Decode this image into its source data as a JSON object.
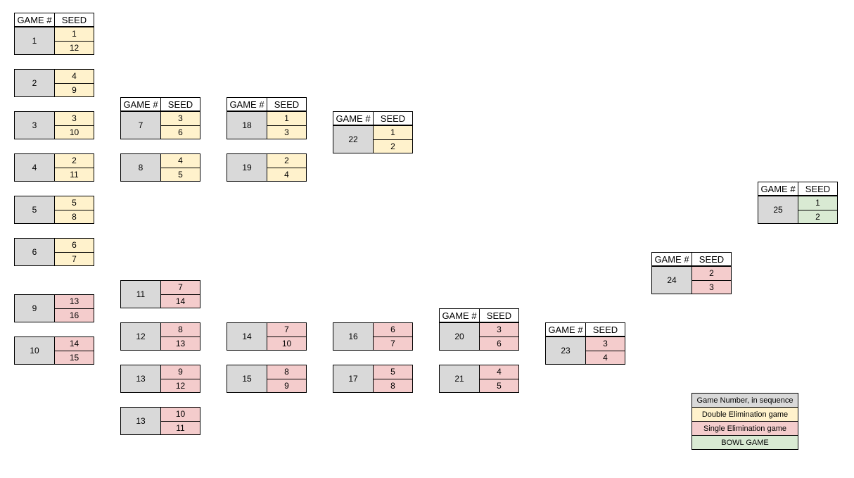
{
  "header": {
    "game_label": "GAME #",
    "seed_label": "SEED"
  },
  "colors": {
    "double": "#fff2cc",
    "single": "#f4cccc",
    "bowl": "#d9ead3",
    "number": "#d9d9d9"
  },
  "games": [
    {
      "number": "1",
      "seeds": [
        "1",
        "12"
      ],
      "type": "double",
      "header": true
    },
    {
      "number": "2",
      "seeds": [
        "4",
        "9"
      ],
      "type": "double",
      "header": false
    },
    {
      "number": "3",
      "seeds": [
        "3",
        "10"
      ],
      "type": "double",
      "header": false
    },
    {
      "number": "4",
      "seeds": [
        "2",
        "11"
      ],
      "type": "double",
      "header": false
    },
    {
      "number": "5",
      "seeds": [
        "5",
        "8"
      ],
      "type": "double",
      "header": false
    },
    {
      "number": "6",
      "seeds": [
        "6",
        "7"
      ],
      "type": "double",
      "header": false
    },
    {
      "number": "9",
      "seeds": [
        "13",
        "16"
      ],
      "type": "single",
      "header": false
    },
    {
      "number": "10",
      "seeds": [
        "14",
        "15"
      ],
      "type": "single",
      "header": false
    },
    {
      "number": "7",
      "seeds": [
        "3",
        "6"
      ],
      "type": "double",
      "header": true
    },
    {
      "number": "8",
      "seeds": [
        "4",
        "5"
      ],
      "type": "double",
      "header": false
    },
    {
      "number": "11",
      "seeds": [
        "7",
        "14"
      ],
      "type": "single",
      "header": false
    },
    {
      "number": "12",
      "seeds": [
        "8",
        "13"
      ],
      "type": "single",
      "header": false
    },
    {
      "number": "13",
      "seeds": [
        "9",
        "12"
      ],
      "type": "single",
      "header": false
    },
    {
      "number": "13",
      "seeds": [
        "10",
        "11"
      ],
      "type": "single",
      "header": false
    },
    {
      "number": "18",
      "seeds": [
        "1",
        "3"
      ],
      "type": "double",
      "header": true
    },
    {
      "number": "19",
      "seeds": [
        "2",
        "4"
      ],
      "type": "double",
      "header": false
    },
    {
      "number": "14",
      "seeds": [
        "7",
        "10"
      ],
      "type": "single",
      "header": false
    },
    {
      "number": "15",
      "seeds": [
        "8",
        "9"
      ],
      "type": "single",
      "header": false
    },
    {
      "number": "22",
      "seeds": [
        "1",
        "2"
      ],
      "type": "double",
      "header": true
    },
    {
      "number": "16",
      "seeds": [
        "6",
        "7"
      ],
      "type": "single",
      "header": false
    },
    {
      "number": "17",
      "seeds": [
        "5",
        "8"
      ],
      "type": "single",
      "header": false
    },
    {
      "number": "20",
      "seeds": [
        "3",
        "6"
      ],
      "type": "single",
      "header": true
    },
    {
      "number": "21",
      "seeds": [
        "4",
        "5"
      ],
      "type": "single",
      "header": false
    },
    {
      "number": "23",
      "seeds": [
        "3",
        "4"
      ],
      "type": "single",
      "header": true
    },
    {
      "number": "24",
      "seeds": [
        "2",
        "3"
      ],
      "type": "single",
      "header": true
    },
    {
      "number": "25",
      "seeds": [
        "1",
        "2"
      ],
      "type": "bowl",
      "header": true
    }
  ],
  "legend": [
    {
      "label": "Game Number, in sequence",
      "type": "number"
    },
    {
      "label": "Double Elimination game",
      "type": "double"
    },
    {
      "label": "Single Elimination game",
      "type": "single"
    },
    {
      "label": "BOWL GAME",
      "type": "bowl"
    }
  ]
}
